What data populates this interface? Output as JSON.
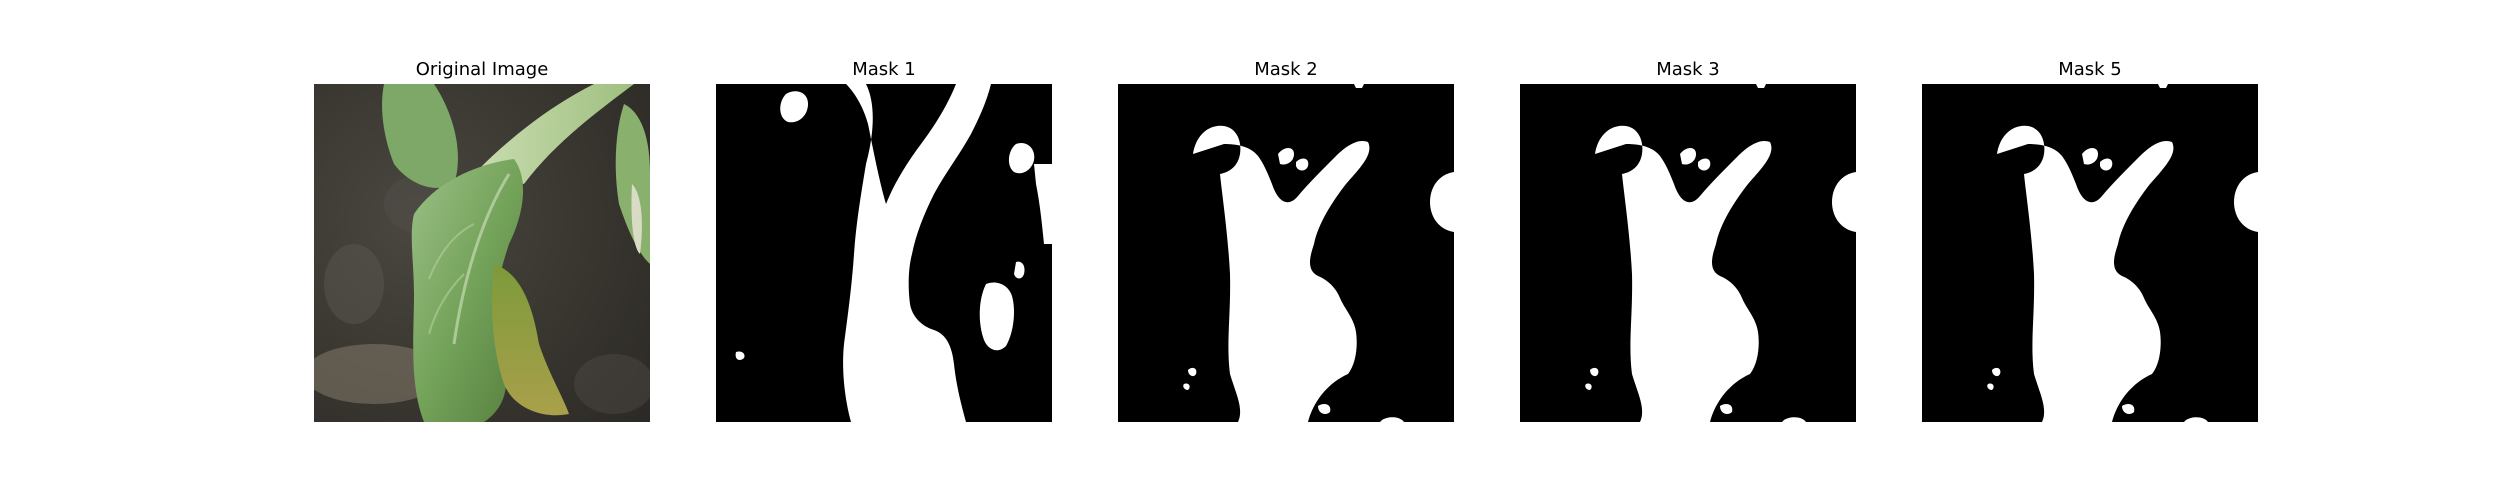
{
  "figure": {
    "panels": [
      {
        "title": "Original Image",
        "kind": "photo"
      },
      {
        "title": "Mask 1",
        "kind": "mask"
      },
      {
        "title": "Mask 2",
        "kind": "mask"
      },
      {
        "title": "Mask 3",
        "kind": "mask"
      },
      {
        "title": "Mask 5",
        "kind": "mask"
      }
    ]
  },
  "colors": {
    "mask_background": "#000000",
    "mask_foreground": "#ffffff",
    "leaf_green": "#6f9a55",
    "soil_dark": "#3d3a36"
  }
}
